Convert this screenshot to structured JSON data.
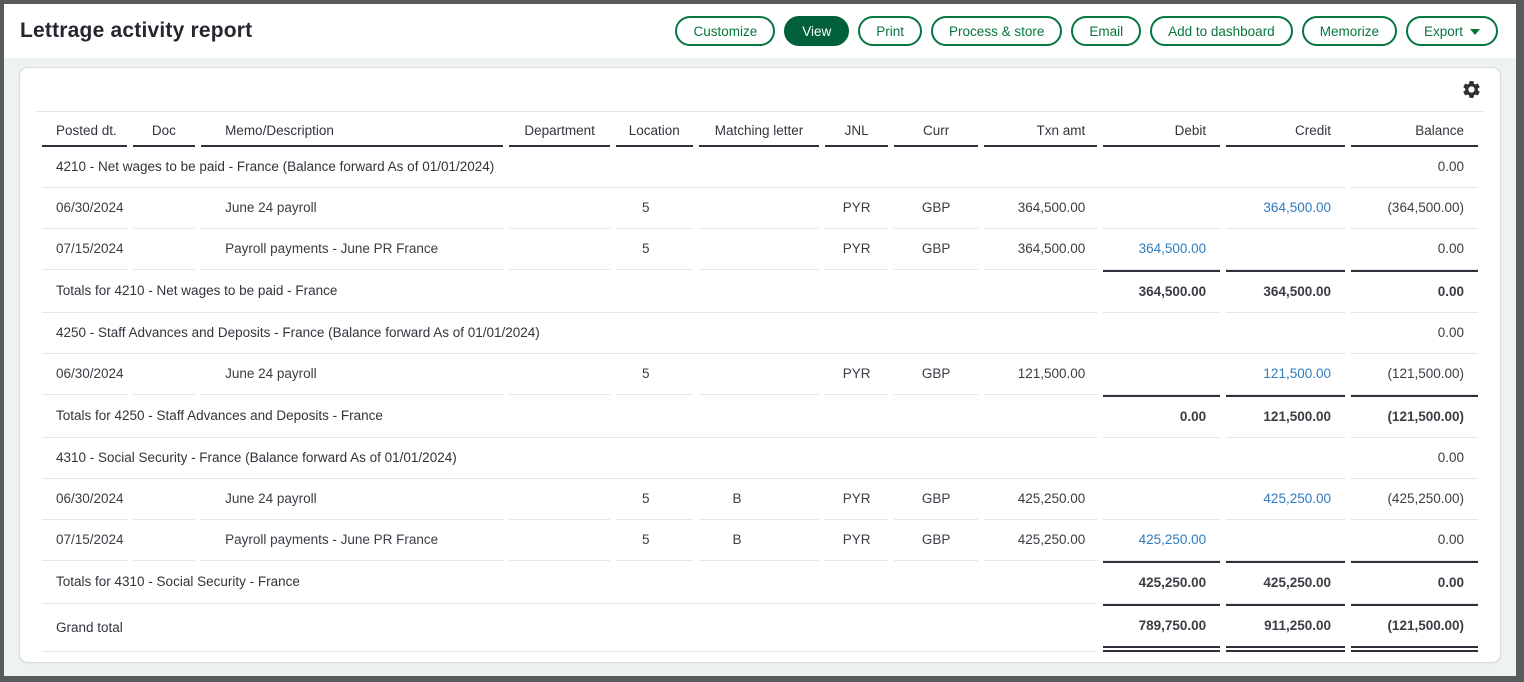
{
  "header": {
    "title": "Lettrage activity report",
    "buttons": [
      {
        "label": "Customize"
      },
      {
        "label": "View"
      },
      {
        "label": "Print"
      },
      {
        "label": "Process & store"
      },
      {
        "label": "Email"
      },
      {
        "label": "Add to dashboard"
      },
      {
        "label": "Memorize"
      },
      {
        "label": "Export"
      }
    ]
  },
  "card": {
    "settings_icon": "gear-icon"
  },
  "colors": {
    "button_green": "#06763f",
    "view_button_fill": "#00603a",
    "amount_link_blue": "#2e7cc1"
  },
  "table": {
    "columns": [
      "Posted dt.",
      "Doc",
      "Memo/Description",
      "Department",
      "Location",
      "Matching letter",
      "JNL",
      "Curr",
      "Txn amt",
      "Debit",
      "Credit",
      "Balance"
    ],
    "rows": [
      {
        "type": "section",
        "label": "4210 - Net wages to be paid - France (Balance forward As of 01/01/2024)",
        "balance": "0.00"
      },
      {
        "type": "data",
        "posted": "06/30/2024",
        "doc": "",
        "memo": "June 24 payroll",
        "department": "",
        "location": "5",
        "matching": "",
        "jnl": "PYR",
        "curr": "GBP",
        "txn": "364,500.00",
        "debit": "",
        "credit": "364,500.00",
        "balance": "(364,500.00)"
      },
      {
        "type": "data",
        "posted": "07/15/2024",
        "doc": "",
        "memo": "Payroll payments - June PR France",
        "department": "",
        "location": "5",
        "matching": "",
        "jnl": "PYR",
        "curr": "GBP",
        "txn": "364,500.00",
        "debit": "364,500.00",
        "credit": "",
        "balance": "0.00"
      },
      {
        "type": "totals",
        "label": "Totals for 4210 - Net wages to be paid - France",
        "debit": "364,500.00",
        "credit": "364,500.00",
        "balance": "0.00"
      },
      {
        "type": "section",
        "label": "4250 - Staff Advances and Deposits - France (Balance forward As of 01/01/2024)",
        "balance": "0.00"
      },
      {
        "type": "data",
        "posted": "06/30/2024",
        "doc": "",
        "memo": "June 24 payroll",
        "department": "",
        "location": "5",
        "matching": "",
        "jnl": "PYR",
        "curr": "GBP",
        "txn": "121,500.00",
        "debit": "",
        "credit": "121,500.00",
        "balance": "(121,500.00)"
      },
      {
        "type": "totals",
        "label": "Totals for 4250 - Staff Advances and Deposits - France",
        "debit": "0.00",
        "credit": "121,500.00",
        "balance": "(121,500.00)"
      },
      {
        "type": "section",
        "label": "4310 - Social Security - France (Balance forward As of 01/01/2024)",
        "balance": "0.00"
      },
      {
        "type": "data",
        "posted": "06/30/2024",
        "doc": "",
        "memo": "June 24 payroll",
        "department": "",
        "location": "5",
        "matching": "B",
        "jnl": "PYR",
        "curr": "GBP",
        "txn": "425,250.00",
        "debit": "",
        "credit": "425,250.00",
        "balance": "(425,250.00)"
      },
      {
        "type": "data",
        "posted": "07/15/2024",
        "doc": "",
        "memo": "Payroll payments - June PR France",
        "department": "",
        "location": "5",
        "matching": "B",
        "jnl": "PYR",
        "curr": "GBP",
        "txn": "425,250.00",
        "debit": "425,250.00",
        "credit": "",
        "balance": "0.00"
      },
      {
        "type": "totals",
        "label": "Totals for 4310 - Social Security - France",
        "debit": "425,250.00",
        "credit": "425,250.00",
        "balance": "0.00"
      },
      {
        "type": "grand",
        "label": "Grand total",
        "debit": "789,750.00",
        "credit": "911,250.00",
        "balance": "(121,500.00)"
      }
    ]
  }
}
